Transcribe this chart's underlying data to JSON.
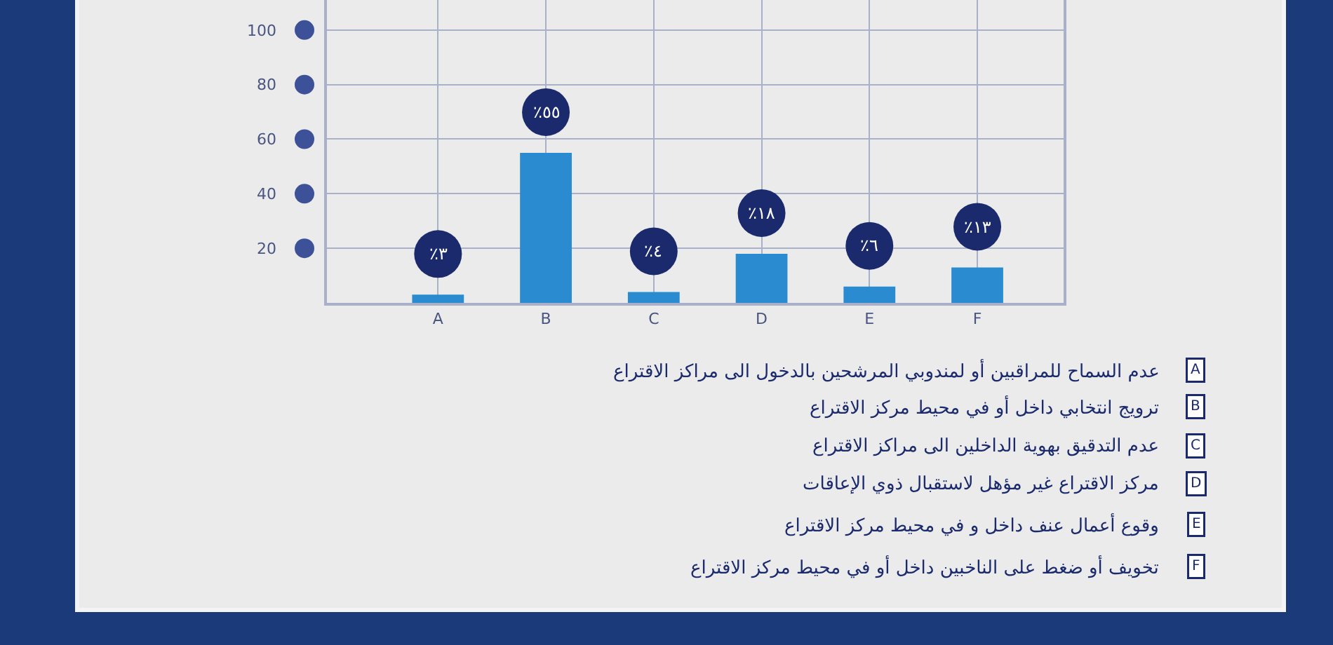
{
  "chart_data": {
    "type": "bar",
    "categories": [
      "A",
      "B",
      "C",
      "D",
      "E",
      "F"
    ],
    "values": [
      3,
      55,
      4,
      18,
      6,
      13
    ],
    "color": "#2a8bd1",
    "value_labels": [
      "٪٣",
      "٪٥٥",
      "٪٤",
      "٪١٨",
      "٪٦",
      "٪١٣"
    ],
    "ylim": [
      0,
      111
    ],
    "yticks": [
      20,
      40,
      60,
      80,
      100
    ],
    "grid": true,
    "annotations": [
      "عدم السماح للمراقبين أو لمندوبي المرشحين بالدخول الى مراكز الاقتراع",
      "ترويج انتخابي داخل أو في محيط مركز الاقتراع",
      "عدم التدقيق بهوية الداخلين الى مراكز الاقتراع",
      "مركز الاقتراع غير مؤهل لاستقبال ذوي الإعاقات",
      "وقوع أعمال عنف داخل و في محيط مركز الاقتراع",
      "تخويف أو ضغط على الناخبين داخل أو في محيط مركز الاقتراع"
    ]
  }
}
